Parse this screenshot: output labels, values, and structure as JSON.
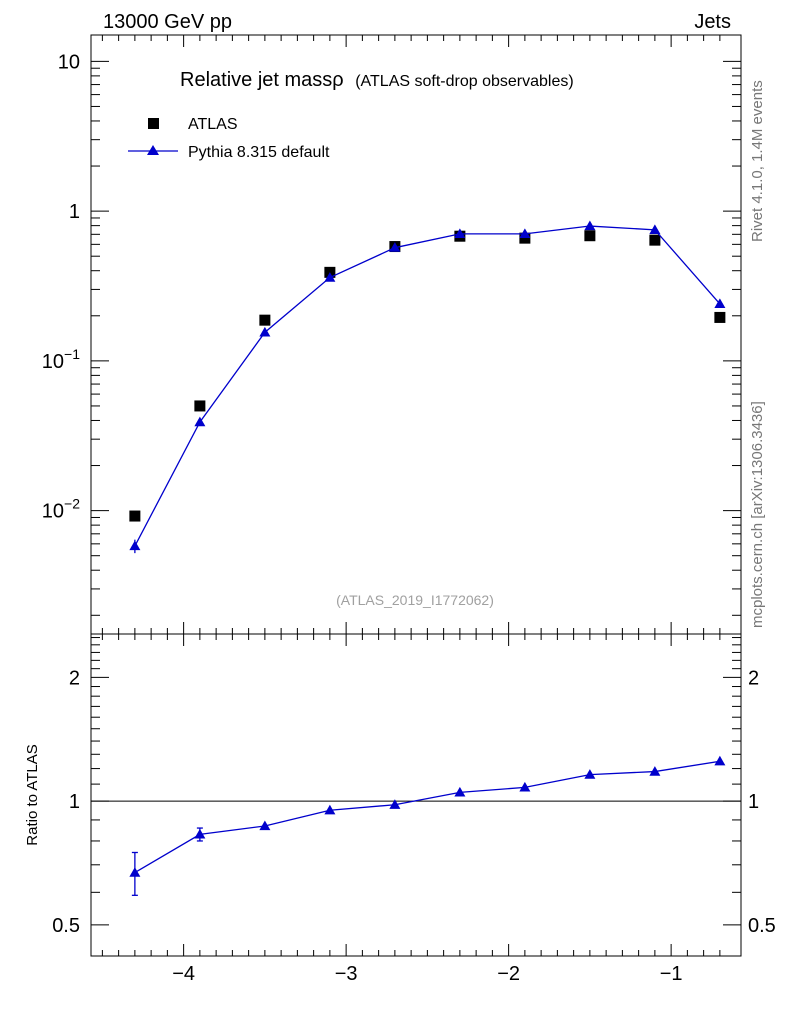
{
  "header": {
    "left": "13000 GeV pp",
    "right": "Jets"
  },
  "side_labels": {
    "rivet": "Rivet 4.1.0,  1.4M events",
    "source": "mcplots.cern.ch [arXiv:1306.3436]"
  },
  "watermark": "(ATLAS_2019_I1772062)",
  "chart_data": [
    {
      "type": "scatter",
      "panel": "main",
      "title_main": "Relative jet massρ",
      "title_sub": "(ATLAS soft-drop observables)",
      "yscale": "log",
      "xlim": [
        -4.57,
        -0.57
      ],
      "ylim": [
        0.0015,
        15
      ],
      "ytick_labels": [
        {
          "value": 10,
          "base": "10",
          "exp": ""
        },
        {
          "value": 1,
          "base": "1",
          "exp": ""
        },
        {
          "value": 0.1,
          "base": "10",
          "exp": "−1"
        },
        {
          "value": 0.01,
          "base": "10",
          "exp": "−2"
        }
      ],
      "legend_position": "top-left",
      "series": [
        {
          "name": "ATLAS",
          "marker": "square",
          "color": "#000000",
          "x": [
            -4.3,
            -3.9,
            -3.5,
            -3.1,
            -2.7,
            -2.3,
            -1.9,
            -1.5,
            -1.1,
            -0.7
          ],
          "y": [
            0.0092,
            0.05,
            0.187,
            0.39,
            0.58,
            0.68,
            0.66,
            0.685,
            0.64,
            0.195
          ]
        },
        {
          "name": "Pythia 8.315 default",
          "marker": "triangle",
          "line": true,
          "color": "#0000cc",
          "x": [
            -4.3,
            -3.9,
            -3.5,
            -3.1,
            -2.7,
            -2.3,
            -1.9,
            -1.5,
            -1.1,
            -0.7
          ],
          "y": [
            0.0058,
            0.039,
            0.155,
            0.36,
            0.57,
            0.705,
            0.705,
            0.795,
            0.75,
            0.24
          ],
          "yerr": [
            0.0006,
            0.0015,
            0.003,
            0.005,
            0.006,
            0.007,
            0.007,
            0.008,
            0.008,
            0.004
          ]
        }
      ]
    },
    {
      "type": "line",
      "panel": "ratio",
      "ylabel": "Ratio to ATLAS",
      "yscale": "log",
      "xlim": [
        -4.57,
        -0.57
      ],
      "ylim": [
        0.42,
        2.55
      ],
      "ytick_labels": [
        {
          "value": 2,
          "text": "2"
        },
        {
          "value": 1,
          "text": "1"
        },
        {
          "value": 0.5,
          "text": "0.5"
        }
      ],
      "xtick_labels": [
        {
          "value": -4,
          "text": "−4"
        },
        {
          "value": -3,
          "text": "−3"
        },
        {
          "value": -2,
          "text": "−2"
        },
        {
          "value": -1,
          "text": "−1"
        }
      ],
      "reference": 1,
      "series": [
        {
          "name": "Pythia 8.315 default / ATLAS",
          "color": "#0000cc",
          "x": [
            -4.3,
            -3.9,
            -3.5,
            -3.1,
            -2.7,
            -2.3,
            -1.9,
            -1.5,
            -1.1,
            -0.7
          ],
          "y": [
            0.67,
            0.83,
            0.87,
            0.95,
            0.98,
            1.05,
            1.08,
            1.16,
            1.18,
            1.25
          ],
          "yerr": [
            0.08,
            0.03,
            0.01,
            0.01,
            0.01,
            0.01,
            0.01,
            0.01,
            0.01,
            0.01
          ]
        }
      ]
    }
  ]
}
